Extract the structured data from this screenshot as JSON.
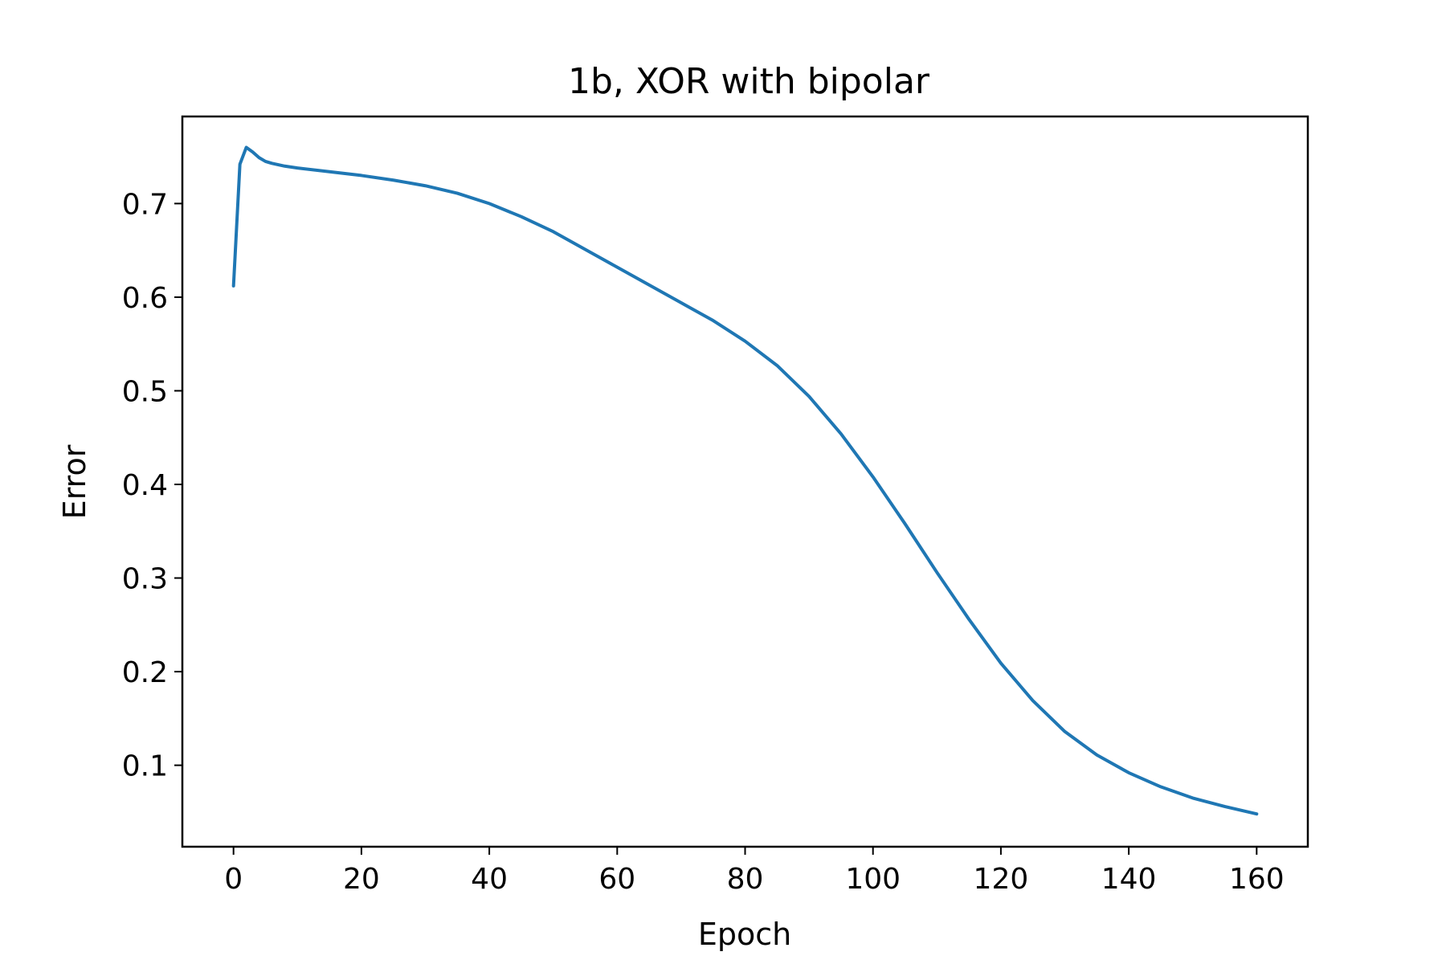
{
  "chart_data": {
    "type": "line",
    "title": "1b, XOR with bipolar",
    "xlabel": "Epoch",
    "ylabel": "Error",
    "xlim": [
      -8,
      168
    ],
    "ylim": [
      0.013,
      0.793
    ],
    "xticks": [
      0,
      20,
      40,
      60,
      80,
      100,
      120,
      140,
      160
    ],
    "yticks": [
      0.1,
      0.2,
      0.3,
      0.4,
      0.5,
      0.6,
      0.7
    ],
    "xtick_labels": [
      "0",
      "20",
      "40",
      "60",
      "80",
      "100",
      "120",
      "140",
      "160"
    ],
    "ytick_labels": [
      "0.1",
      "0.2",
      "0.3",
      "0.4",
      "0.5",
      "0.6",
      "0.7"
    ],
    "grid": false,
    "legend": "none",
    "series": [
      {
        "color": "#1f77b4",
        "x": [
          0,
          1,
          2,
          3,
          4,
          5,
          6,
          8,
          10,
          15,
          20,
          25,
          30,
          35,
          40,
          45,
          50,
          55,
          60,
          65,
          70,
          75,
          80,
          85,
          90,
          95,
          100,
          105,
          110,
          115,
          120,
          125,
          130,
          135,
          140,
          145,
          150,
          155,
          160
        ],
        "y": [
          0.612,
          0.742,
          0.76,
          0.755,
          0.749,
          0.745,
          0.743,
          0.74,
          0.738,
          0.734,
          0.73,
          0.725,
          0.719,
          0.711,
          0.7,
          0.686,
          0.67,
          0.651,
          0.632,
          0.613,
          0.594,
          0.575,
          0.553,
          0.527,
          0.494,
          0.454,
          0.408,
          0.358,
          0.306,
          0.256,
          0.209,
          0.169,
          0.136,
          0.111,
          0.092,
          0.077,
          0.065,
          0.056,
          0.048
        ]
      }
    ]
  }
}
